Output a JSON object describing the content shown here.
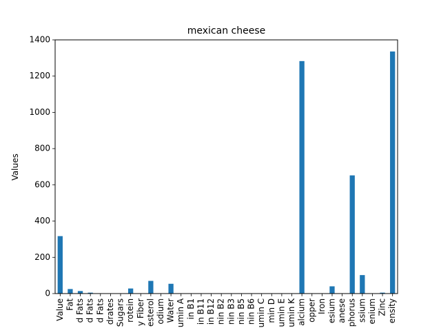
{
  "chart_data": {
    "type": "bar",
    "title": "mexican cheese",
    "xlabel": "",
    "ylabel": "Values",
    "ylim": [
      0,
      1400
    ],
    "yticks": [
      0,
      200,
      400,
      600,
      800,
      1000,
      1200,
      1400
    ],
    "grid": false,
    "bar_color": "#1f77b4",
    "categories": [
      "Value",
      "Fat",
      "d Fats",
      "d Fats",
      "d Fats",
      "drates",
      "Sugars",
      "rotein",
      "y Fiber",
      "esterol",
      "odium",
      "Water",
      "umin A",
      "in B1",
      "in B11",
      "in B12",
      "nin B2",
      "nin B3",
      "nin B5",
      "nin B6",
      "umin C",
      "min D",
      "umin E",
      "umin K",
      "alcium",
      "opper",
      "Iron",
      "esium",
      "anese",
      "phorus",
      "ssium",
      "enium",
      "Zinc",
      "ensity"
    ],
    "values": [
      317,
      25,
      14,
      5,
      1,
      1,
      0,
      28,
      0,
      70,
      1,
      54,
      0,
      0,
      0,
      0,
      0,
      0,
      0,
      0,
      0,
      0,
      0,
      0,
      1283,
      0,
      1,
      40,
      0,
      652,
      102,
      0,
      5,
      1336
    ]
  }
}
